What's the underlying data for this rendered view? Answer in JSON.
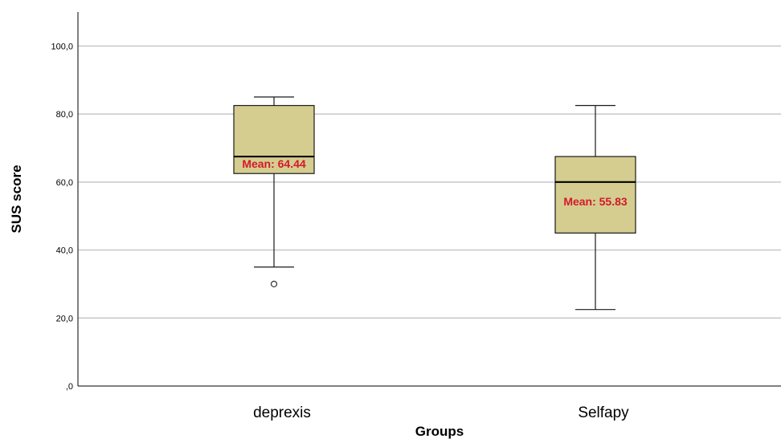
{
  "chart_data": {
    "type": "boxplot",
    "xlabel": "Groups",
    "ylabel": "SUS score",
    "ylim": [
      0,
      110
    ],
    "yticks": [
      0,
      20,
      40,
      60,
      80,
      100
    ],
    "ytick_labels": [
      ",0",
      "20,0",
      "40,0",
      "60,0",
      "80,0",
      "100,0"
    ],
    "grid": "horizontal",
    "colors": {
      "box_fill": "#d4cd8f",
      "box_stroke": "#1a1a1a",
      "grid": "#c8c8c8",
      "mean_label": "#d4182b"
    },
    "groups": [
      {
        "category": "deprexis",
        "whisker_low": 35,
        "q1": 62.5,
        "median": 67.5,
        "q3": 82.5,
        "whisker_high": 85,
        "outliers": [
          30
        ],
        "mean_label": "Mean: 64.44"
      },
      {
        "category": "Selfapy",
        "whisker_low": 22.5,
        "q1": 45,
        "median": 60,
        "q3": 67.5,
        "whisker_high": 82.5,
        "outliers": [],
        "mean_label": "Mean: 55.83"
      }
    ]
  }
}
